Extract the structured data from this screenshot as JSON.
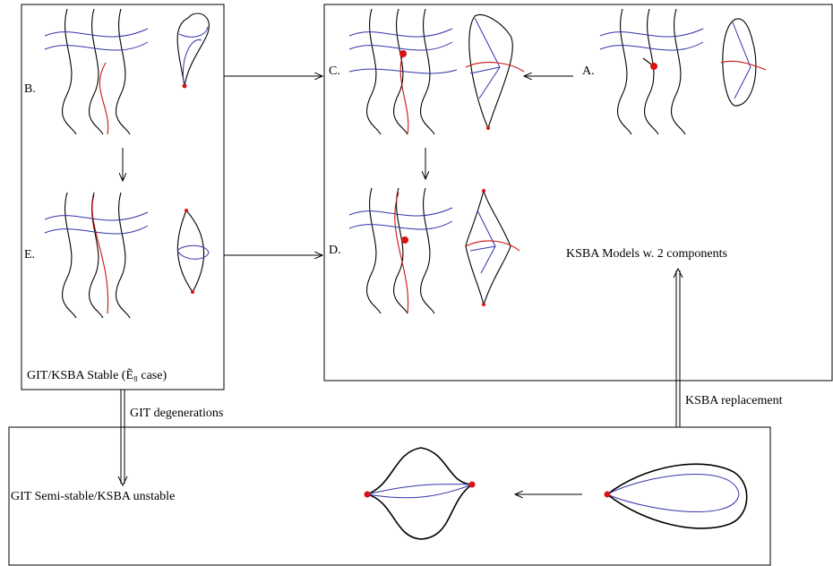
{
  "labels": {
    "b": "B.",
    "c": "C.",
    "a": "A.",
    "e": "E.",
    "d": "D."
  },
  "right_box": {
    "title": "KSBA Models w. 2 components"
  },
  "left_box": {
    "title": "GIT/KSBA Stable (Ẽ₈ case)"
  },
  "bottom_box": {
    "title": "GIT Semi-stable/KSBA unstable"
  },
  "arrows": {
    "down": "GIT degenerations",
    "up": "KSBA replacement"
  }
}
